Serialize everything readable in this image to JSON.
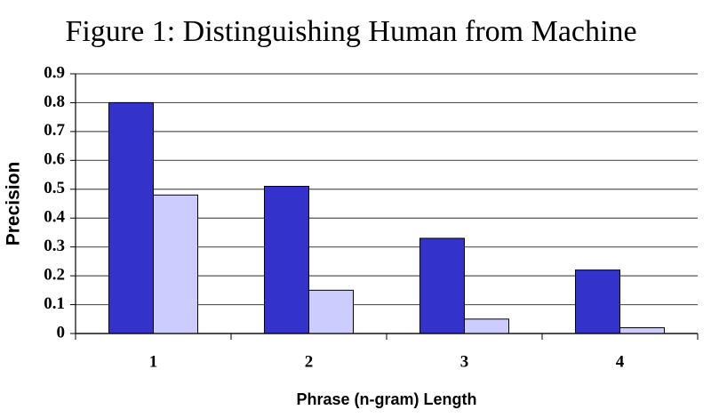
{
  "chart_data": {
    "type": "bar",
    "title": "Figure 1: Distinguishing Human from Machine",
    "x_label": "Phrase (n-gram) Length",
    "y_label": "Precision",
    "categories": [
      "1",
      "2",
      "3",
      "4"
    ],
    "series": [
      {
        "color": "#3333cc",
        "values": [
          0.8,
          0.51,
          0.33,
          0.22
        ]
      },
      {
        "color": "#ccccff",
        "values": [
          0.48,
          0.15,
          0.05,
          0.02
        ]
      }
    ],
    "ylim": [
      0,
      0.9
    ],
    "yticks": [
      0,
      0.1,
      0.2,
      0.3,
      0.4,
      0.5,
      0.6,
      0.7,
      0.8,
      0.9
    ],
    "grid": true
  }
}
